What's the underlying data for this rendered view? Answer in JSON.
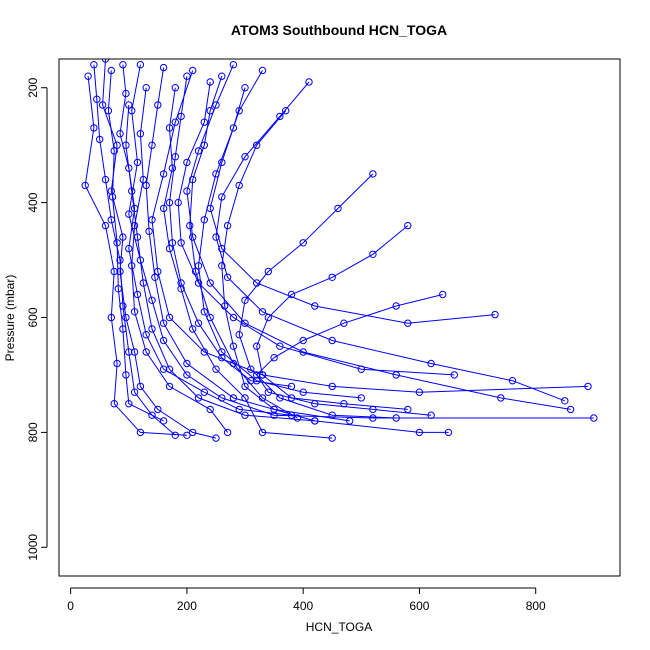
{
  "chart_data": {
    "type": "scatter",
    "title": "ATOM3 Southbound HCN_TOGA",
    "xlabel": "HCN_TOGA",
    "ylabel": "Pressure (mbar)",
    "xlim": [
      -20,
      945
    ],
    "ylim": [
      1050,
      150
    ],
    "x_ticks": [
      0,
      200,
      400,
      600,
      800
    ],
    "y_ticks": [
      200,
      400,
      600,
      800,
      1000
    ],
    "y_reversed": true,
    "grid": false,
    "legend": "none",
    "colors": {
      "series": "#0000ff",
      "axis": "#000000",
      "background": "#ffffff"
    },
    "marker": "open-circle",
    "connected": true,
    "series": [
      {
        "points": [
          {
            "x": 60,
            "y": 150
          },
          {
            "x": 55,
            "y": 230
          },
          {
            "x": 80,
            "y": 300
          },
          {
            "x": 70,
            "y": 380
          },
          {
            "x": 90,
            "y": 460
          },
          {
            "x": 85,
            "y": 520
          },
          {
            "x": 95,
            "y": 600
          },
          {
            "x": 110,
            "y": 660
          },
          {
            "x": 120,
            "y": 720
          },
          {
            "x": 150,
            "y": 760
          },
          {
            "x": 210,
            "y": 800
          },
          {
            "x": 250,
            "y": 810
          }
        ]
      },
      {
        "points": [
          {
            "x": 120,
            "y": 160
          },
          {
            "x": 105,
            "y": 240
          },
          {
            "x": 115,
            "y": 330
          },
          {
            "x": 100,
            "y": 420
          },
          {
            "x": 120,
            "y": 500
          },
          {
            "x": 140,
            "y": 570
          },
          {
            "x": 160,
            "y": 640
          },
          {
            "x": 200,
            "y": 700
          },
          {
            "x": 260,
            "y": 740
          },
          {
            "x": 350,
            "y": 770
          },
          {
            "x": 520,
            "y": 775
          },
          {
            "x": 900,
            "y": 775
          }
        ]
      },
      {
        "points": [
          {
            "x": 210,
            "y": 170
          },
          {
            "x": 180,
            "y": 260
          },
          {
            "x": 160,
            "y": 350
          },
          {
            "x": 140,
            "y": 430
          },
          {
            "x": 150,
            "y": 520
          },
          {
            "x": 170,
            "y": 600
          },
          {
            "x": 230,
            "y": 660
          },
          {
            "x": 330,
            "y": 700
          },
          {
            "x": 450,
            "y": 720
          },
          {
            "x": 600,
            "y": 730
          },
          {
            "x": 890,
            "y": 720
          }
        ]
      },
      {
        "points": [
          {
            "x": 30,
            "y": 180
          },
          {
            "x": 40,
            "y": 270
          },
          {
            "x": 25,
            "y": 370
          },
          {
            "x": 60,
            "y": 440
          },
          {
            "x": 75,
            "y": 520
          },
          {
            "x": 70,
            "y": 600
          },
          {
            "x": 80,
            "y": 680
          },
          {
            "x": 75,
            "y": 750
          },
          {
            "x": 120,
            "y": 800
          },
          {
            "x": 200,
            "y": 805
          }
        ]
      },
      {
        "points": [
          {
            "x": 280,
            "y": 160
          },
          {
            "x": 250,
            "y": 230
          },
          {
            "x": 220,
            "y": 310
          },
          {
            "x": 200,
            "y": 380
          },
          {
            "x": 210,
            "y": 460
          },
          {
            "x": 240,
            "y": 540
          },
          {
            "x": 300,
            "y": 610
          },
          {
            "x": 400,
            "y": 660
          },
          {
            "x": 560,
            "y": 700
          },
          {
            "x": 740,
            "y": 740
          },
          {
            "x": 860,
            "y": 760
          }
        ]
      },
      {
        "points": [
          {
            "x": 330,
            "y": 170
          },
          {
            "x": 290,
            "y": 240
          },
          {
            "x": 260,
            "y": 330
          },
          {
            "x": 240,
            "y": 410
          },
          {
            "x": 260,
            "y": 480
          },
          {
            "x": 320,
            "y": 540
          },
          {
            "x": 420,
            "y": 580
          },
          {
            "x": 580,
            "y": 610
          },
          {
            "x": 730,
            "y": 595
          }
        ]
      },
      {
        "points": [
          {
            "x": 90,
            "y": 160
          },
          {
            "x": 95,
            "y": 210
          },
          {
            "x": 85,
            "y": 280
          },
          {
            "x": 100,
            "y": 340
          },
          {
            "x": 110,
            "y": 410
          },
          {
            "x": 100,
            "y": 480
          },
          {
            "x": 115,
            "y": 560
          },
          {
            "x": 130,
            "y": 630
          },
          {
            "x": 160,
            "y": 690
          },
          {
            "x": 230,
            "y": 730
          },
          {
            "x": 290,
            "y": 760
          },
          {
            "x": 380,
            "y": 770
          }
        ]
      },
      {
        "points": [
          {
            "x": 160,
            "y": 165
          },
          {
            "x": 150,
            "y": 230
          },
          {
            "x": 140,
            "y": 300
          },
          {
            "x": 130,
            "y": 370
          },
          {
            "x": 135,
            "y": 450
          },
          {
            "x": 145,
            "y": 530
          },
          {
            "x": 160,
            "y": 610
          },
          {
            "x": 200,
            "y": 680
          },
          {
            "x": 280,
            "y": 740
          },
          {
            "x": 420,
            "y": 780
          },
          {
            "x": 600,
            "y": 800
          },
          {
            "x": 650,
            "y": 800
          }
        ]
      },
      {
        "points": [
          {
            "x": 240,
            "y": 190
          },
          {
            "x": 230,
            "y": 260
          },
          {
            "x": 200,
            "y": 330
          },
          {
            "x": 185,
            "y": 400
          },
          {
            "x": 190,
            "y": 470
          },
          {
            "x": 220,
            "y": 540
          },
          {
            "x": 280,
            "y": 600
          },
          {
            "x": 360,
            "y": 650
          },
          {
            "x": 500,
            "y": 690
          },
          {
            "x": 660,
            "y": 700
          }
        ]
      },
      {
        "points": [
          {
            "x": 410,
            "y": 190
          },
          {
            "x": 360,
            "y": 250
          },
          {
            "x": 300,
            "y": 320
          },
          {
            "x": 260,
            "y": 390
          },
          {
            "x": 250,
            "y": 460
          },
          {
            "x": 270,
            "y": 530
          },
          {
            "x": 330,
            "y": 590
          },
          {
            "x": 450,
            "y": 640
          },
          {
            "x": 620,
            "y": 680
          },
          {
            "x": 760,
            "y": 710
          },
          {
            "x": 850,
            "y": 745
          }
        ]
      },
      {
        "points": [
          {
            "x": 520,
            "y": 350
          },
          {
            "x": 460,
            "y": 410
          },
          {
            "x": 400,
            "y": 470
          },
          {
            "x": 340,
            "y": 520
          },
          {
            "x": 300,
            "y": 570
          },
          {
            "x": 290,
            "y": 630
          },
          {
            "x": 310,
            "y": 690
          },
          {
            "x": 360,
            "y": 740
          },
          {
            "x": 450,
            "y": 770
          },
          {
            "x": 560,
            "y": 775
          }
        ]
      },
      {
        "points": [
          {
            "x": 370,
            "y": 240
          },
          {
            "x": 320,
            "y": 300
          },
          {
            "x": 290,
            "y": 370
          },
          {
            "x": 270,
            "y": 440
          },
          {
            "x": 260,
            "y": 510
          },
          {
            "x": 265,
            "y": 580
          },
          {
            "x": 280,
            "y": 650
          },
          {
            "x": 300,
            "y": 720
          },
          {
            "x": 350,
            "y": 760
          },
          {
            "x": 480,
            "y": 780
          }
        ]
      },
      {
        "points": [
          {
            "x": 180,
            "y": 200
          },
          {
            "x": 170,
            "y": 270
          },
          {
            "x": 175,
            "y": 340
          },
          {
            "x": 160,
            "y": 410
          },
          {
            "x": 170,
            "y": 480
          },
          {
            "x": 190,
            "y": 550
          },
          {
            "x": 210,
            "y": 620
          },
          {
            "x": 250,
            "y": 690
          },
          {
            "x": 300,
            "y": 740
          },
          {
            "x": 330,
            "y": 800
          },
          {
            "x": 450,
            "y": 810
          }
        ]
      },
      {
        "points": [
          {
            "x": 70,
            "y": 170
          },
          {
            "x": 65,
            "y": 240
          },
          {
            "x": 75,
            "y": 310
          },
          {
            "x": 72,
            "y": 390
          },
          {
            "x": 80,
            "y": 470
          },
          {
            "x": 82,
            "y": 550
          },
          {
            "x": 90,
            "y": 620
          },
          {
            "x": 95,
            "y": 700
          },
          {
            "x": 100,
            "y": 750
          },
          {
            "x": 160,
            "y": 780
          }
        ]
      },
      {
        "points": [
          {
            "x": 580,
            "y": 440
          },
          {
            "x": 520,
            "y": 490
          },
          {
            "x": 450,
            "y": 530
          },
          {
            "x": 380,
            "y": 560
          },
          {
            "x": 340,
            "y": 600
          },
          {
            "x": 320,
            "y": 650
          },
          {
            "x": 330,
            "y": 700
          },
          {
            "x": 380,
            "y": 740
          },
          {
            "x": 470,
            "y": 750
          },
          {
            "x": 580,
            "y": 760
          }
        ]
      },
      {
        "points": [
          {
            "x": 300,
            "y": 200
          },
          {
            "x": 280,
            "y": 270
          },
          {
            "x": 250,
            "y": 350
          },
          {
            "x": 230,
            "y": 430
          },
          {
            "x": 220,
            "y": 510
          },
          {
            "x": 230,
            "y": 590
          },
          {
            "x": 260,
            "y": 660
          },
          {
            "x": 320,
            "y": 710
          },
          {
            "x": 400,
            "y": 730
          },
          {
            "x": 500,
            "y": 740
          }
        ]
      },
      {
        "points": [
          {
            "x": 130,
            "y": 200
          },
          {
            "x": 120,
            "y": 280
          },
          {
            "x": 125,
            "y": 360
          },
          {
            "x": 110,
            "y": 440
          },
          {
            "x": 105,
            "y": 510
          },
          {
            "x": 110,
            "y": 590
          },
          {
            "x": 130,
            "y": 660
          },
          {
            "x": 170,
            "y": 720
          },
          {
            "x": 240,
            "y": 760
          },
          {
            "x": 270,
            "y": 800
          }
        ]
      },
      {
        "points": [
          {
            "x": 640,
            "y": 560
          },
          {
            "x": 560,
            "y": 580
          },
          {
            "x": 470,
            "y": 610
          },
          {
            "x": 400,
            "y": 640
          },
          {
            "x": 350,
            "y": 670
          },
          {
            "x": 320,
            "y": 700
          },
          {
            "x": 340,
            "y": 730
          },
          {
            "x": 420,
            "y": 750
          },
          {
            "x": 520,
            "y": 760
          },
          {
            "x": 620,
            "y": 770
          }
        ]
      },
      {
        "points": [
          {
            "x": 200,
            "y": 180
          },
          {
            "x": 190,
            "y": 250
          },
          {
            "x": 180,
            "y": 320
          },
          {
            "x": 170,
            "y": 400
          },
          {
            "x": 175,
            "y": 470
          },
          {
            "x": 190,
            "y": 540
          },
          {
            "x": 220,
            "y": 610
          },
          {
            "x": 260,
            "y": 670
          },
          {
            "x": 310,
            "y": 710
          },
          {
            "x": 380,
            "y": 720
          }
        ]
      },
      {
        "points": [
          {
            "x": 100,
            "y": 230
          },
          {
            "x": 95,
            "y": 300
          },
          {
            "x": 105,
            "y": 380
          },
          {
            "x": 115,
            "y": 460
          },
          {
            "x": 125,
            "y": 540
          },
          {
            "x": 140,
            "y": 620
          },
          {
            "x": 170,
            "y": 690
          },
          {
            "x": 220,
            "y": 740
          },
          {
            "x": 300,
            "y": 770
          },
          {
            "x": 420,
            "y": 780
          }
        ]
      },
      {
        "points": [
          {
            "x": 40,
            "y": 160
          },
          {
            "x": 45,
            "y": 220
          },
          {
            "x": 50,
            "y": 290
          },
          {
            "x": 60,
            "y": 360
          },
          {
            "x": 70,
            "y": 430
          },
          {
            "x": 85,
            "y": 500
          },
          {
            "x": 90,
            "y": 580
          },
          {
            "x": 100,
            "y": 660
          },
          {
            "x": 110,
            "y": 730
          },
          {
            "x": 140,
            "y": 770
          },
          {
            "x": 180,
            "y": 805
          }
        ]
      },
      {
        "points": [
          {
            "x": 260,
            "y": 180
          },
          {
            "x": 240,
            "y": 240
          },
          {
            "x": 230,
            "y": 300
          },
          {
            "x": 210,
            "y": 360
          },
          {
            "x": 205,
            "y": 440
          },
          {
            "x": 215,
            "y": 520
          },
          {
            "x": 240,
            "y": 600
          },
          {
            "x": 280,
            "y": 680
          },
          {
            "x": 330,
            "y": 740
          },
          {
            "x": 390,
            "y": 775
          }
        ]
      }
    ]
  }
}
